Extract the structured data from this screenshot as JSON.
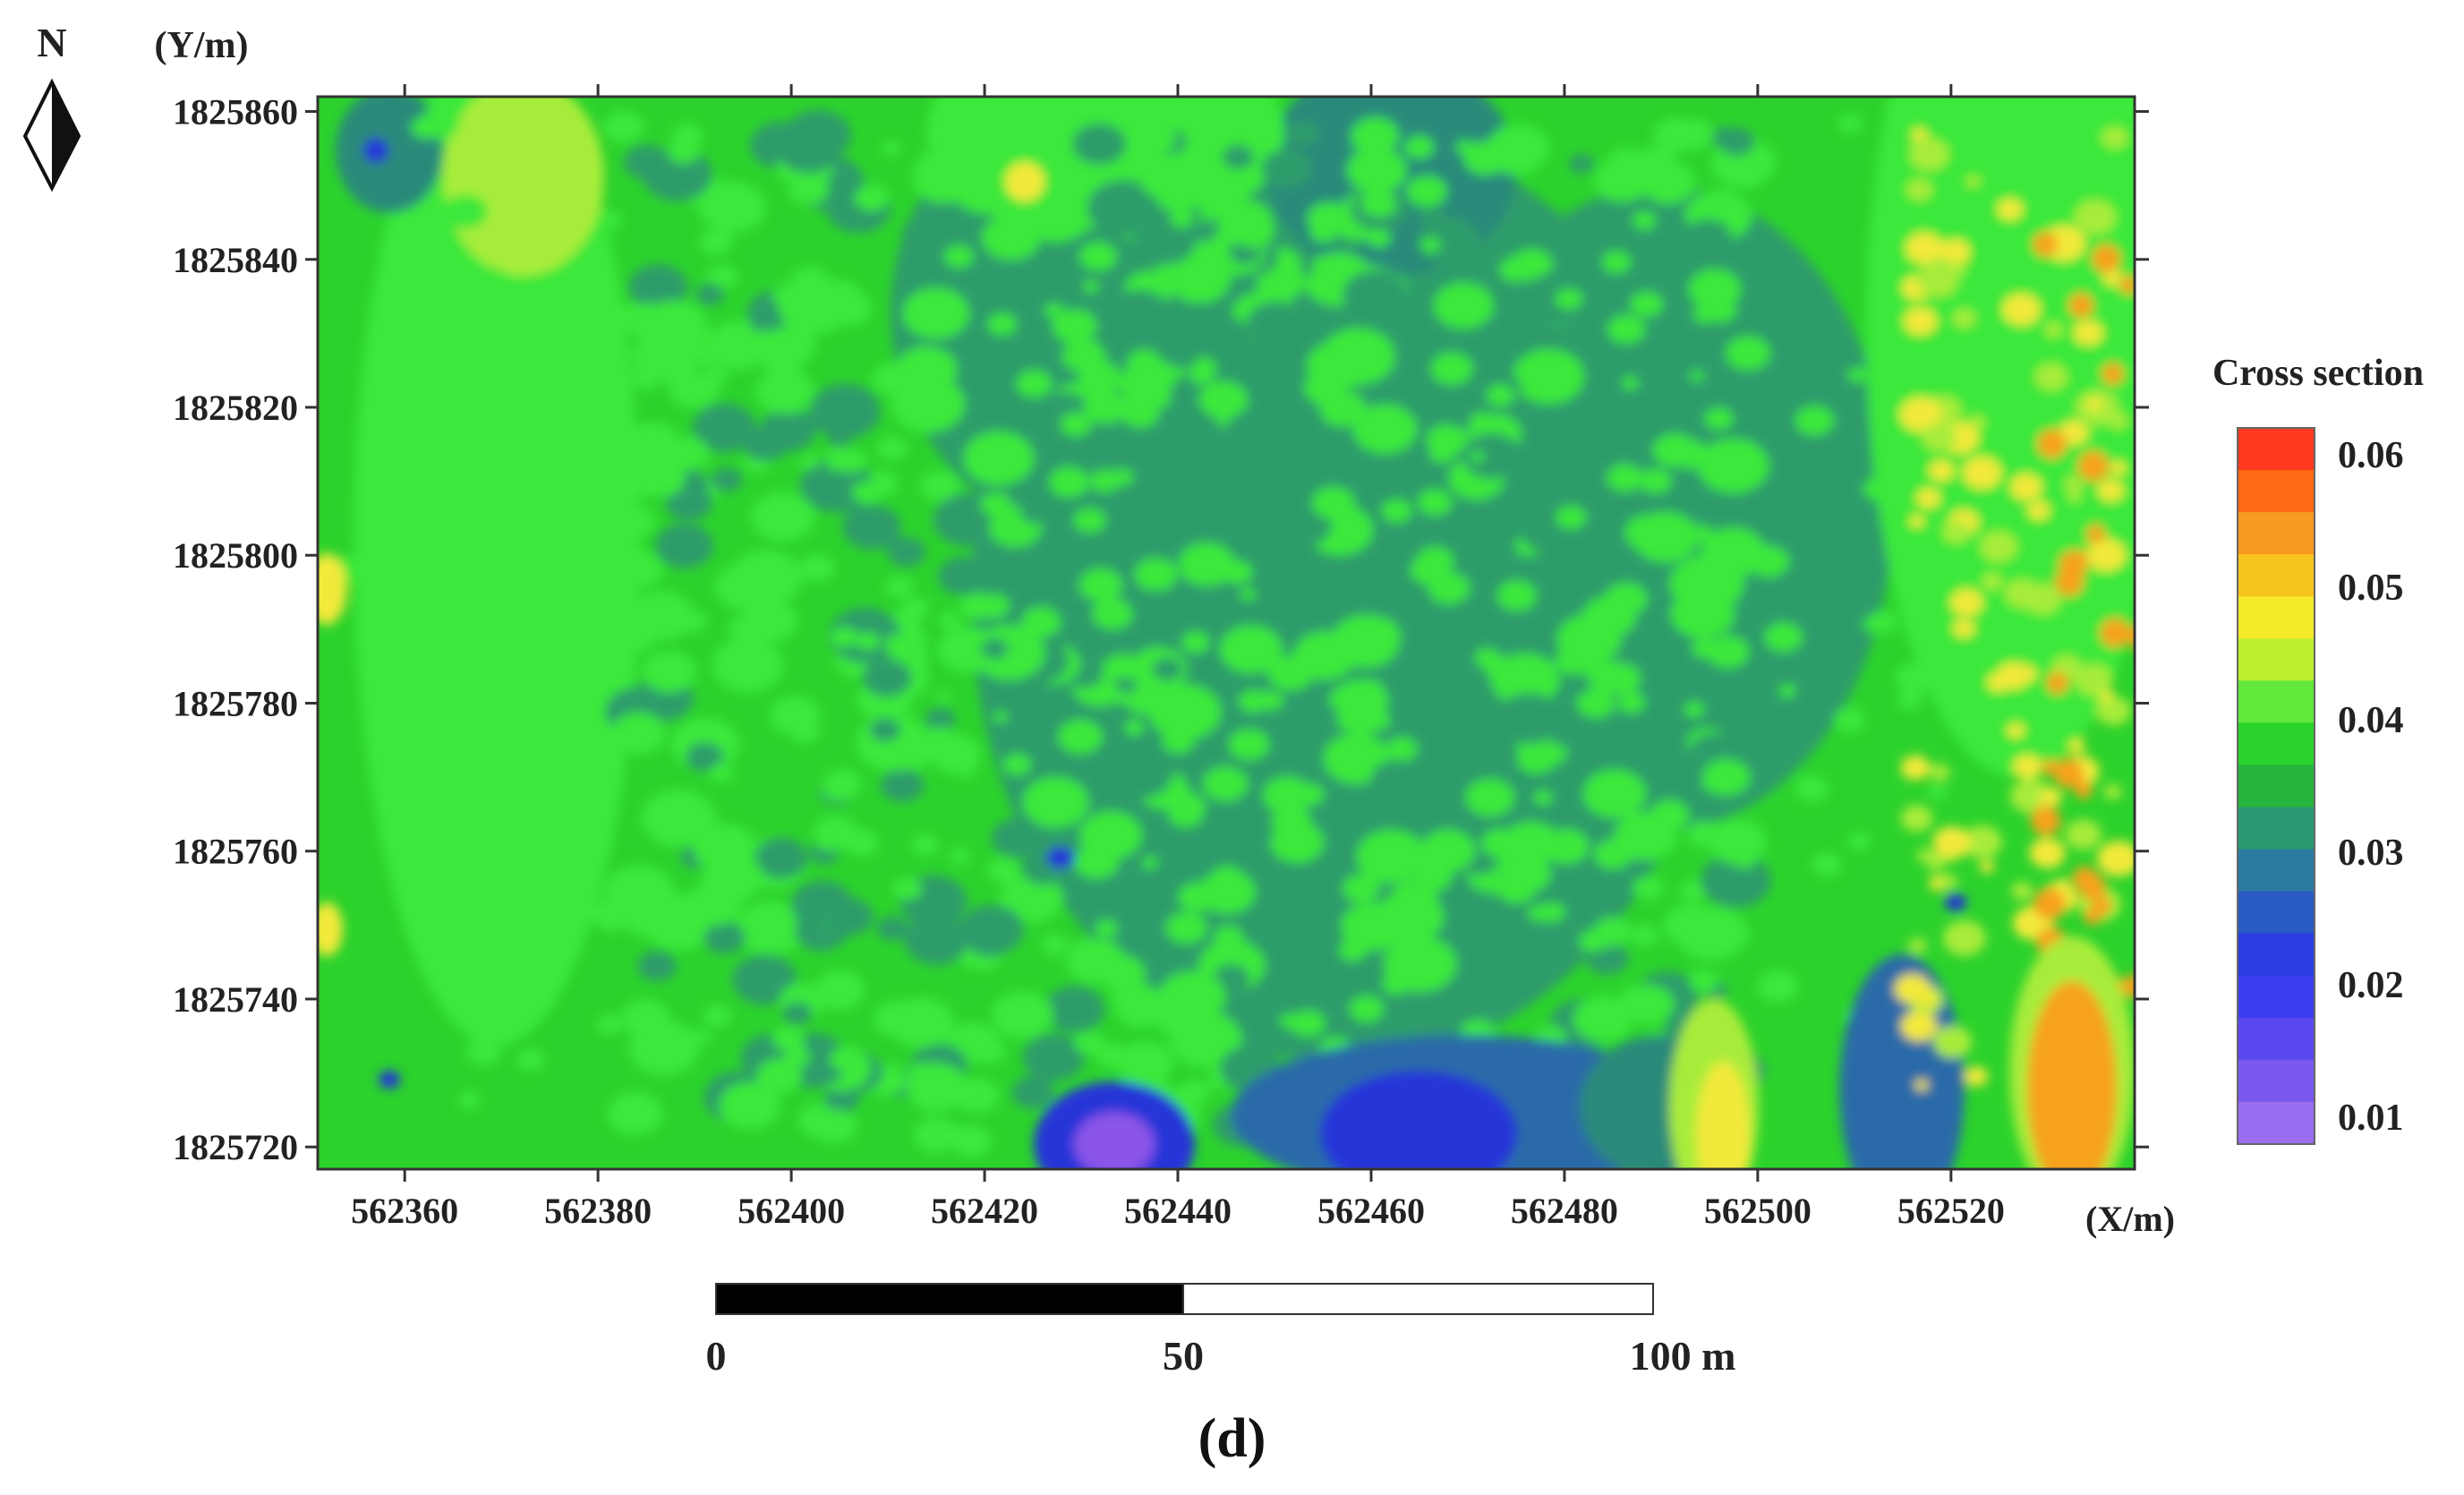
{
  "north": {
    "label": "N",
    "icon": "north-arrow-icon"
  },
  "map": {
    "y_unit_label": "(Y/m)",
    "x_unit_label": "(X/m)",
    "x_ticks": [
      "562360",
      "562380",
      "562400",
      "562420",
      "562440",
      "562460",
      "562480",
      "562500",
      "562520"
    ],
    "y_ticks": [
      "1825860",
      "1825840",
      "1825820",
      "1825800",
      "1825780",
      "1825760",
      "1825740",
      "1825720"
    ],
    "x_range": [
      562351,
      562539
    ],
    "y_range": [
      1825717,
      1825862
    ],
    "field_colors": {
      "background": "#2cd22c",
      "light_green": "#3be83b",
      "teal": "#2e9c6a",
      "dark_teal": "#2a8a7a",
      "blue_green": "#2c6aa8",
      "blue": "#2836d8",
      "purple": "#8a55e8",
      "yellow_green": "#a8ec3a",
      "yellow": "#f2e93a",
      "orange": "#f7a21f"
    }
  },
  "legend": {
    "title": "Cross section",
    "labels": [
      "0.06",
      "0.05",
      "0.04",
      "0.03",
      "0.02",
      "0.01"
    ],
    "colors": [
      "#ff3a1e",
      "#ff6a14",
      "#f79a20",
      "#f6c41c",
      "#f4ea2a",
      "#bdf02e",
      "#60e83a",
      "#2cd22c",
      "#26b43c",
      "#2b9a73",
      "#2b7aa0",
      "#2a5ac4",
      "#2a3de0",
      "#3b3df0",
      "#5a48ee",
      "#7a5aee",
      "#9a6cf0"
    ]
  },
  "scale_bar": {
    "labels": [
      "0",
      "50",
      "100 m"
    ],
    "max_m": 100
  },
  "caption": "(d)"
}
